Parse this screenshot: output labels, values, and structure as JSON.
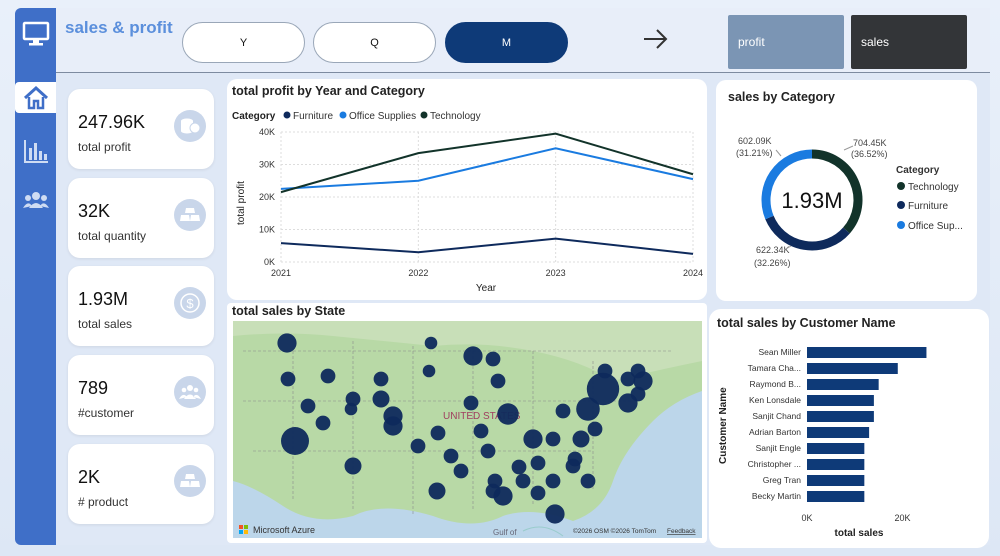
{
  "app": {
    "title": "sales & profit"
  },
  "nav": {
    "items": [
      {
        "name": "monitor-icon"
      },
      {
        "name": "home-icon"
      },
      {
        "name": "bar-chart-icon"
      },
      {
        "name": "people-icon"
      }
    ]
  },
  "period": {
    "options": [
      "Y",
      "Q",
      "M"
    ],
    "selected": "M"
  },
  "toggles": {
    "profit_label": "profit",
    "sales_label": "sales"
  },
  "kpis": [
    {
      "value": "247.96K",
      "label": "total profit",
      "icon": "coins-icon"
    },
    {
      "value": "32K",
      "label": "total quantity",
      "icon": "gold-bars-icon"
    },
    {
      "value": "1.93M",
      "label": "total sales",
      "icon": "dollar-icon"
    },
    {
      "value": "789",
      "label": "#customer",
      "icon": "people-icon"
    },
    {
      "value": "2K",
      "label": "# product",
      "icon": "gold-bars-icon"
    }
  ],
  "colors": {
    "furniture": "#0e2a5c",
    "office": "#1a7be0",
    "technology": "#12332a",
    "accent": "#3f6fc8"
  },
  "chart_data": [
    {
      "type": "line",
      "title": "total profit by Year and Category",
      "legend_title": "Category",
      "x": [
        "2021",
        "2022",
        "2023",
        "2024"
      ],
      "xlabel": "Year",
      "ylabel": "total profit",
      "yticks": [
        "0K",
        "10K",
        "20K",
        "30K",
        "40K"
      ],
      "ylim": [
        0,
        40000
      ],
      "series": [
        {
          "name": "Furniture",
          "values": [
            5800,
            3000,
            7200,
            2500
          ]
        },
        {
          "name": "Office Supplies",
          "values": [
            22500,
            25000,
            35000,
            25500
          ]
        },
        {
          "name": "Technology",
          "values": [
            21500,
            33500,
            39500,
            27000
          ]
        }
      ]
    },
    {
      "type": "pie",
      "title": "sales by Category",
      "center_label": "1.93M",
      "legend_title": "Category",
      "slices": [
        {
          "name": "Technology",
          "value": 704450,
          "label": "704.45K",
          "pct": "(36.52%)"
        },
        {
          "name": "Furniture",
          "value": 622340,
          "label": "622.34K",
          "pct": "(32.26%)"
        },
        {
          "name": "Office Supplies",
          "value": 602090,
          "label": "602.09K",
          "pct": "(31.21%)"
        }
      ],
      "legend_labels": [
        "Technology",
        "Furniture",
        "Office Sup..."
      ]
    },
    {
      "type": "bar",
      "title": "total sales by Customer Name",
      "orientation": "horizontal",
      "categories": [
        "Sean Miller",
        "Tamara Cha...",
        "Raymond B...",
        "Ken Lonsdale",
        "Sanjit Chand",
        "Adrian Barton",
        "Sanjit Engle",
        "Christopher ...",
        "Greg Tran",
        "Becky Martin"
      ],
      "values": [
        25000,
        19000,
        15000,
        14000,
        14000,
        13000,
        12000,
        12000,
        12000,
        12000
      ],
      "xticks": [
        "0K",
        "20K"
      ],
      "xlim": [
        0,
        36000
      ],
      "xlabel": "total sales",
      "ylabel": "Customer Name"
    }
  ],
  "map": {
    "title": "total sales by State",
    "country_label": "UNITED STATES",
    "gulf_label": "Gulf of",
    "brand": "Microsoft Azure",
    "credits": "©2026 OSM  ©2026 TomTom",
    "feedback": "Feedback",
    "bubble_scale": [
      {
        "v": 5
      },
      {
        "v": 3
      },
      {
        "v": 2
      },
      {
        "v": 2
      },
      {
        "v": 2
      },
      {
        "v": 2
      },
      {
        "v": 2
      },
      {
        "v": 1.5
      },
      {
        "v": 2
      },
      {
        "v": 2.5
      },
      {
        "v": 3
      },
      {
        "v": 1.5
      },
      {
        "v": 1.5
      },
      {
        "v": 3
      },
      {
        "v": 2
      },
      {
        "v": 2
      },
      {
        "v": 2
      },
      {
        "v": 3.5
      },
      {
        "v": 2
      },
      {
        "v": 2
      },
      {
        "v": 3
      },
      {
        "v": 6
      },
      {
        "v": 2
      },
      {
        "v": 2
      },
      {
        "v": 3
      },
      {
        "v": 4
      },
      {
        "v": 2
      },
      {
        "v": 2
      },
      {
        "v": 2.5
      },
      {
        "v": 2
      },
      {
        "v": 2
      },
      {
        "v": 2
      },
      {
        "v": 2
      },
      {
        "v": 2
      },
      {
        "v": 3
      },
      {
        "v": 2
      },
      {
        "v": 2
      },
      {
        "v": 2
      },
      {
        "v": 2
      },
      {
        "v": 3
      },
      {
        "v": 2
      },
      {
        "v": 2
      },
      {
        "v": 2
      },
      {
        "v": 2
      },
      {
        "v": 2.5
      },
      {
        "v": 2
      },
      {
        "v": 2
      },
      {
        "v": 3
      },
      {
        "v": 2
      },
      {
        "v": 2
      },
      {
        "v": 3
      },
      {
        "v": 2.5
      }
    ]
  }
}
